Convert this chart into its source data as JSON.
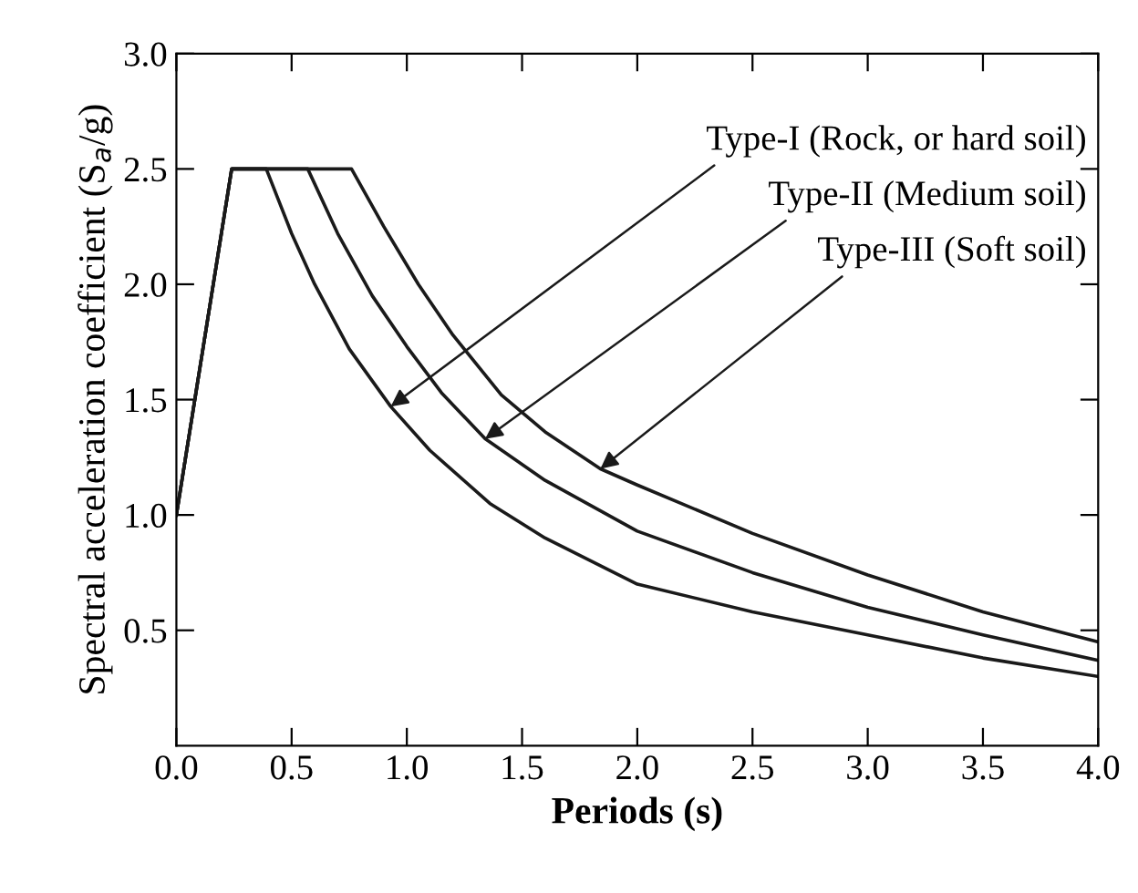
{
  "chart_data": {
    "type": "line",
    "xlabel": "Periods (s)",
    "ylabel": "Spectral acceleration coefficient (S$_{a}$/g)",
    "series": [
      {
        "color": "#1a1a1a",
        "x": [
          0,
          0.24,
          0.39,
          0.5,
          0.6,
          0.75,
          0.93,
          1.1,
          1.36,
          1.6,
          2.0,
          2.5,
          3.0,
          3.5,
          4.0
        ],
        "values": [
          1.0,
          2.5,
          2.5,
          2.22,
          2.0,
          1.72,
          1.47,
          1.28,
          1.05,
          0.9,
          0.7,
          0.58,
          0.48,
          0.38,
          0.3
        ]
      },
      {
        "color": "#1a1a1a",
        "x": [
          0,
          0.24,
          0.57,
          0.7,
          0.85,
          1.0,
          1.15,
          1.34,
          1.6,
          2.0,
          2.5,
          3.0,
          3.5,
          4.0
        ],
        "values": [
          1.0,
          2.5,
          2.5,
          2.22,
          1.95,
          1.73,
          1.53,
          1.33,
          1.15,
          0.93,
          0.75,
          0.6,
          0.48,
          0.37
        ]
      },
      {
        "color": "#1a1a1a",
        "x": [
          0,
          0.24,
          0.76,
          0.9,
          1.05,
          1.2,
          1.41,
          1.6,
          1.84,
          2.0,
          2.5,
          3.0,
          3.5,
          4.0
        ],
        "values": [
          1.0,
          2.5,
          2.5,
          2.25,
          2.0,
          1.78,
          1.52,
          1.36,
          1.2,
          1.13,
          0.92,
          0.74,
          0.58,
          0.45
        ]
      }
    ],
    "xlim": [
      0,
      4.0
    ],
    "ylim": [
      0,
      3.0
    ],
    "xticks": [
      {
        "value": 0,
        "label": "0.0"
      },
      {
        "value": 0.5,
        "label": "0.5"
      },
      {
        "value": 1.0,
        "label": "1.0"
      },
      {
        "value": 1.5,
        "label": "1.5"
      },
      {
        "value": 2.0,
        "label": "2.0"
      },
      {
        "value": 2.5,
        "label": "2.5"
      },
      {
        "value": 3.0,
        "label": "3.0"
      },
      {
        "value": 3.5,
        "label": "3.5"
      },
      {
        "value": 4.0,
        "label": "4.0"
      }
    ],
    "yticks": [
      {
        "value": 0.5,
        "label": "0.5"
      },
      {
        "value": 1.0,
        "label": "1.0"
      },
      {
        "value": 1.5,
        "label": "1.5"
      },
      {
        "value": 2.0,
        "label": "2.0"
      },
      {
        "value": 2.5,
        "label": "2.5"
      },
      {
        "value": 3.0,
        "label": "3.0"
      }
    ],
    "annotations": [
      {
        "text": "Type-I (Rock, or hard soil)",
        "x": 0.93,
        "y": 1.47
      },
      {
        "text": "Type-II (Medium soil)",
        "x": 1.34,
        "y": 1.33
      },
      {
        "text": "Type-III (Soft soil)",
        "x": 1.84,
        "y": 1.2
      }
    ],
    "grid": false,
    "legend": false,
    "marker": "none",
    "line_style": "solid"
  }
}
